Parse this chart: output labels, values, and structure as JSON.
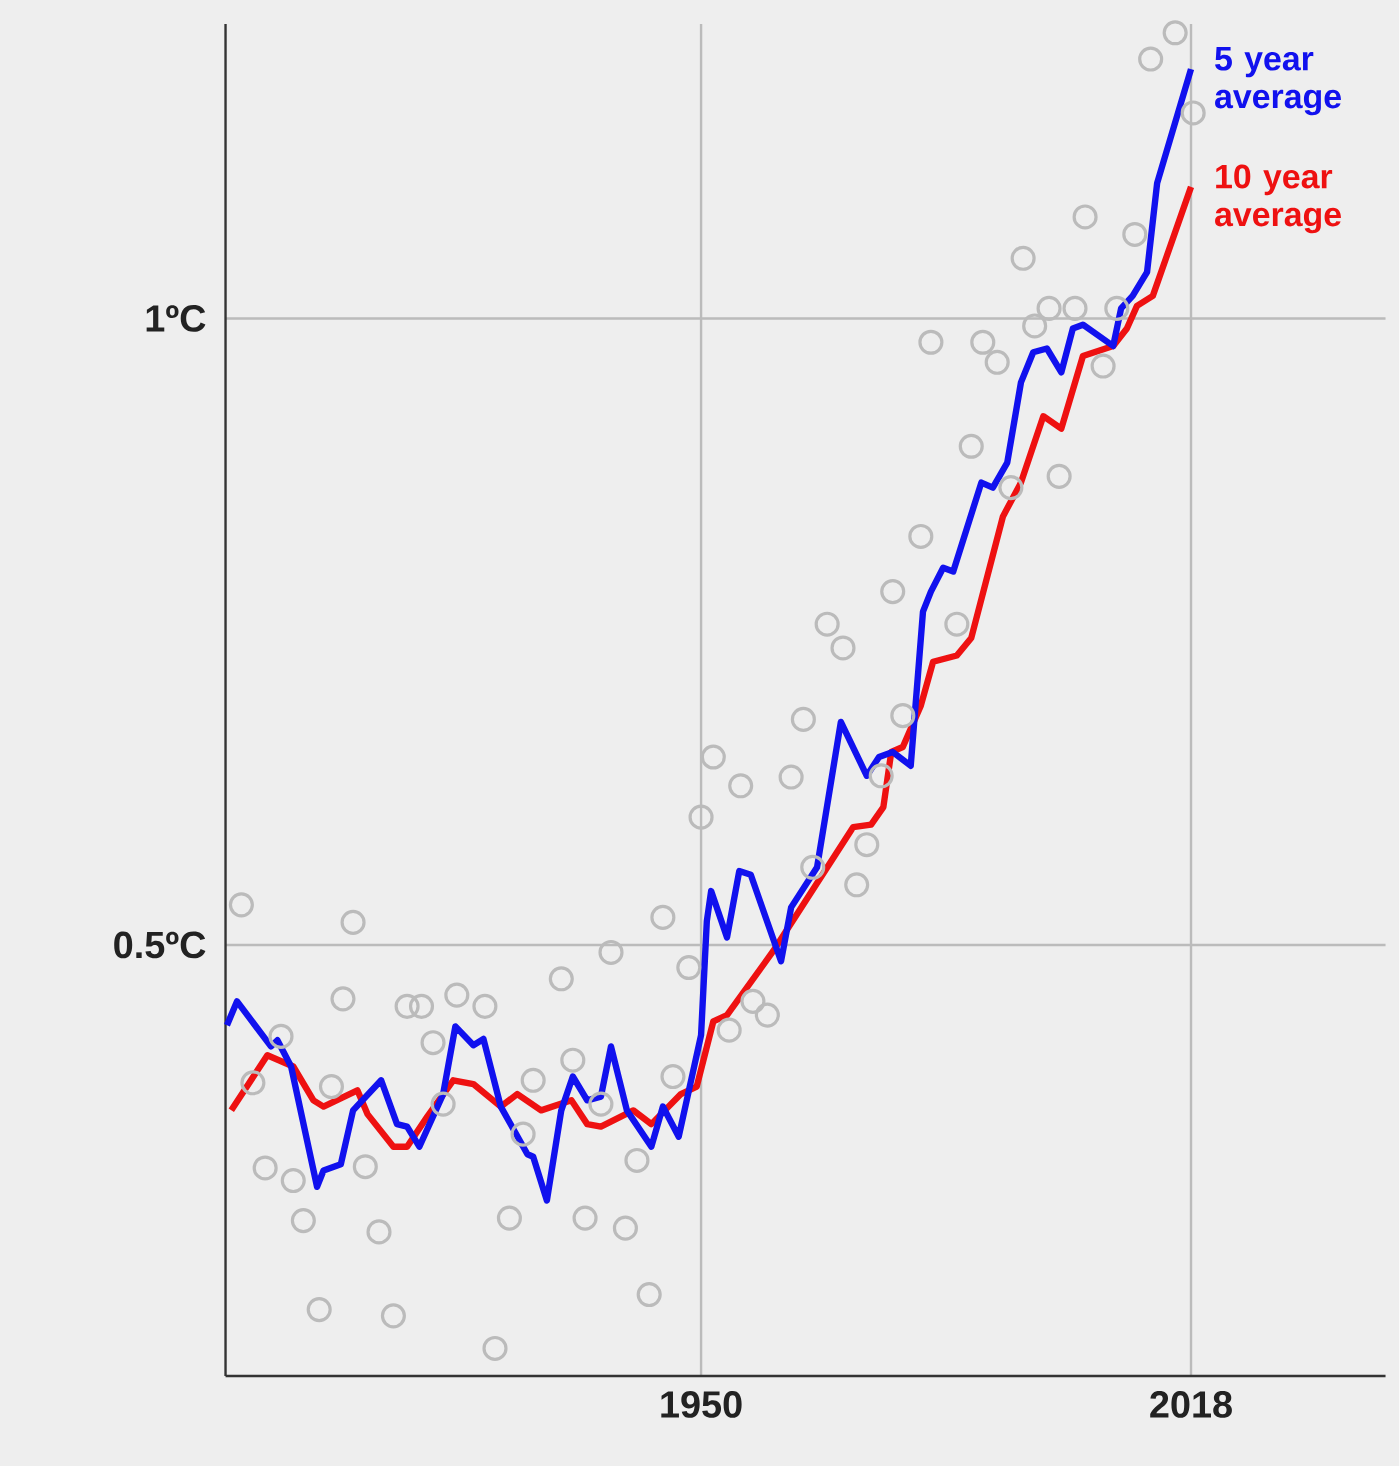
{
  "chart_data": {
    "type": "line",
    "xlim": [
      1884,
      2045
    ],
    "ylim": [
      0.156,
      1.235
    ],
    "xticks": [
      1950,
      2018
    ],
    "yticks": [
      {
        "value": 0.5,
        "label": "0.5ºC"
      },
      {
        "value": 1,
        "label": "1ºC"
      }
    ],
    "grid": true,
    "marker": "none",
    "series": [
      {
        "type": "scatter",
        "marker": "circle",
        "color": "#bbbbbb",
        "x": [
          1886.2,
          1887.8,
          1889.5,
          1891.7,
          1893.4,
          1894.8,
          1897.0,
          1898.7,
          1900.3,
          1901.7,
          1903.4,
          1905.3,
          1907.3,
          1909.2,
          1911.2,
          1912.8,
          1914.2,
          1916.1,
          1920.0,
          1921.4,
          1923.4,
          1925.3,
          1926.7,
          1930.6,
          1932.2,
          1933.9,
          1936.1,
          1937.5,
          1939.5,
          1941.1,
          1942.8,
          1944.7,
          1946.1,
          1948.3,
          1950.0,
          1951.7,
          1953.9,
          1955.5,
          1957.2,
          1959.2,
          1962.5,
          1964.2,
          1965.5,
          1967.5,
          1969.7,
          1971.6,
          1973.0,
          1975.0,
          1976.6,
          1978.0,
          1980.5,
          1981.9,
          1985.5,
          1987.5,
          1989.1,
          1991.1,
          1993.0,
          1994.7,
          1996.3,
          1998.3,
          1999.7,
          2001.9,
          2003.3,
          2005.8,
          2007.7,
          2010.2,
          2012.4,
          2015.8,
          2018.3
        ],
        "values": [
          0.532,
          0.39,
          0.322,
          0.427,
          0.312,
          0.28,
          0.209,
          0.387,
          0.457,
          0.518,
          0.323,
          0.271,
          0.204,
          0.451,
          0.451,
          0.422,
          0.373,
          0.46,
          0.451,
          0.178,
          0.282,
          0.349,
          0.392,
          0.473,
          0.408,
          0.282,
          0.373,
          0.494,
          0.274,
          0.328,
          0.221,
          0.522,
          0.395,
          0.482,
          0.602,
          0.65,
          0.432,
          0.627,
          0.455,
          0.444,
          0.634,
          0.68,
          0.562,
          0.756,
          0.737,
          0.548,
          0.58,
          0.635,
          0.782,
          0.683,
          0.826,
          0.981,
          0.756,
          0.898,
          0.981,
          0.965,
          0.865,
          1.048,
          0.994,
          1.008,
          0.874,
          1.008,
          1.081,
          0.962,
          1.008,
          1.067,
          1.207,
          1.228,
          1.164
        ]
      },
      {
        "name": "10 year average",
        "color": "#ee1111",
        "x": [
          1884.8,
          1889.8,
          1893.4,
          1896.2,
          1897.6,
          1902.3,
          1903.7,
          1907.3,
          1909.2,
          1912.0,
          1915.6,
          1918.4,
          1922.2,
          1924.5,
          1927.8,
          1932.0,
          1934.2,
          1936.1,
          1940.6,
          1943.1,
          1947.2,
          1949.4,
          1951.7,
          1953.6,
          1960.0,
          1971.1,
          1973.6,
          1975.3,
          1976.4,
          1978.0,
          1980.5,
          1982.2,
          1985.5,
          1987.5,
          1991.9,
          1994.4,
          1997.5,
          2000.0,
          2003.0,
          2007.2,
          2009.1,
          2010.5,
          2012.7,
          2018.0
        ],
        "values": [
          0.368,
          0.412,
          0.403,
          0.376,
          0.371,
          0.384,
          0.365,
          0.339,
          0.339,
          0.363,
          0.392,
          0.389,
          0.371,
          0.381,
          0.368,
          0.376,
          0.357,
          0.355,
          0.368,
          0.357,
          0.381,
          0.387,
          0.439,
          0.444,
          0.495,
          0.594,
          0.596,
          0.61,
          0.654,
          0.658,
          0.691,
          0.726,
          0.731,
          0.745,
          0.842,
          0.869,
          0.922,
          0.912,
          0.97,
          0.978,
          0.992,
          1.01,
          1.018,
          1.105
        ]
      },
      {
        "name": "5 year average",
        "color": "#1111ee",
        "x": [
          1884.2,
          1885.6,
          1890.3,
          1891.2,
          1893.1,
          1896.7,
          1897.6,
          1900.0,
          1901.7,
          1905.6,
          1907.8,
          1909.2,
          1910.9,
          1914.2,
          1915.9,
          1918.4,
          1919.8,
          1922.2,
          1925.9,
          1926.7,
          1928.6,
          1930.6,
          1932.2,
          1934.2,
          1936.1,
          1937.5,
          1939.7,
          1943.1,
          1944.7,
          1946.9,
          1950.0,
          1950.8,
          1951.4,
          1953.6,
          1955.3,
          1956.9,
          1961.1,
          1962.5,
          1966.1,
          1969.4,
          1973.0,
          1974.7,
          1976.6,
          1979.1,
          1980.8,
          1981.9,
          1983.6,
          1985.0,
          1988.9,
          1990.5,
          1992.5,
          1994.4,
          1996.1,
          1998.0,
          2000.0,
          2001.6,
          2003.0,
          2007.2,
          2008.3,
          2009.9,
          2011.9,
          2013.3,
          2018.0
        ],
        "values": [
          0.436,
          0.455,
          0.419,
          0.424,
          0.403,
          0.307,
          0.32,
          0.325,
          0.368,
          0.392,
          0.357,
          0.355,
          0.339,
          0.381,
          0.435,
          0.42,
          0.425,
          0.371,
          0.333,
          0.331,
          0.296,
          0.368,
          0.395,
          0.376,
          0.379,
          0.419,
          0.368,
          0.339,
          0.371,
          0.347,
          0.428,
          0.519,
          0.543,
          0.506,
          0.559,
          0.556,
          0.487,
          0.53,
          0.562,
          0.678,
          0.635,
          0.65,
          0.654,
          0.643,
          0.766,
          0.782,
          0.801,
          0.798,
          0.869,
          0.865,
          0.885,
          0.949,
          0.973,
          0.976,
          0.957,
          0.992,
          0.995,
          0.978,
          1.008,
          1.018,
          1.037,
          1.108,
          1.199
        ]
      }
    ]
  }
}
